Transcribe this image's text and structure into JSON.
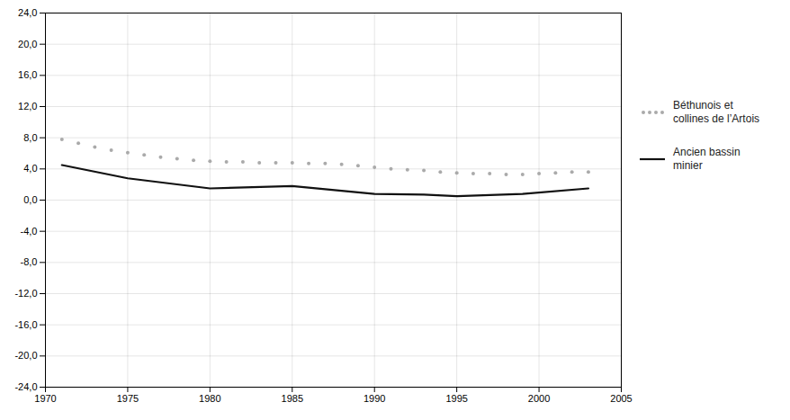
{
  "chart_data": {
    "type": "line",
    "series": [
      {
        "name": "Béthunois et\ncollines de l’Artois",
        "color": "#aaaaaa",
        "line_style": "none",
        "marker": "dot",
        "x": [
          1971,
          1972,
          1973,
          1974,
          1975,
          1976,
          1977,
          1978,
          1979,
          1980,
          1981,
          1982,
          1983,
          1984,
          1985,
          1986,
          1987,
          1988,
          1989,
          1990,
          1991,
          1992,
          1993,
          1994,
          1995,
          1996,
          1997,
          1998,
          1999,
          2000,
          2001,
          2002,
          2003
        ],
        "values": [
          7.8,
          7.3,
          6.8,
          6.4,
          6.1,
          5.8,
          5.5,
          5.3,
          5.1,
          5.0,
          4.9,
          4.9,
          4.8,
          4.8,
          4.8,
          4.7,
          4.7,
          4.6,
          4.4,
          4.2,
          4.0,
          3.9,
          3.8,
          3.6,
          3.5,
          3.4,
          3.4,
          3.3,
          3.3,
          3.4,
          3.5,
          3.6,
          3.6
        ]
      },
      {
        "name": "Ancien bassin\nminier",
        "color": "#111111",
        "line_style": "solid",
        "x": [
          1971,
          1975,
          1980,
          1985,
          1990,
          1993,
          1995,
          1999,
          2003
        ],
        "values": [
          4.5,
          2.8,
          1.5,
          1.8,
          0.8,
          0.7,
          0.5,
          0.8,
          1.5
        ]
      }
    ],
    "xlim": [
      1970,
      2005
    ],
    "xticks": [
      1970,
      1975,
      1980,
      1985,
      1990,
      1995,
      2000,
      2005
    ],
    "ylim": [
      -24.0,
      24.0
    ],
    "yticks": [
      {
        "value": -24,
        "label": "-24,0"
      },
      {
        "value": -20,
        "label": "-20,0"
      },
      {
        "value": -16,
        "label": "-16,0"
      },
      {
        "value": -12,
        "label": "-12,0"
      },
      {
        "value": -8,
        "label": "-8,0"
      },
      {
        "value": -4,
        "label": "-4,0"
      },
      {
        "value": 0,
        "label": "0,0"
      },
      {
        "value": 4,
        "label": "4,0"
      },
      {
        "value": 8,
        "label": "8,0"
      },
      {
        "value": 12,
        "label": "12,0"
      },
      {
        "value": 16,
        "label": "16,0"
      },
      {
        "value": 20,
        "label": "20,0"
      },
      {
        "value": 24,
        "label": "24,0"
      }
    ],
    "grid": true,
    "legend": "right"
  }
}
